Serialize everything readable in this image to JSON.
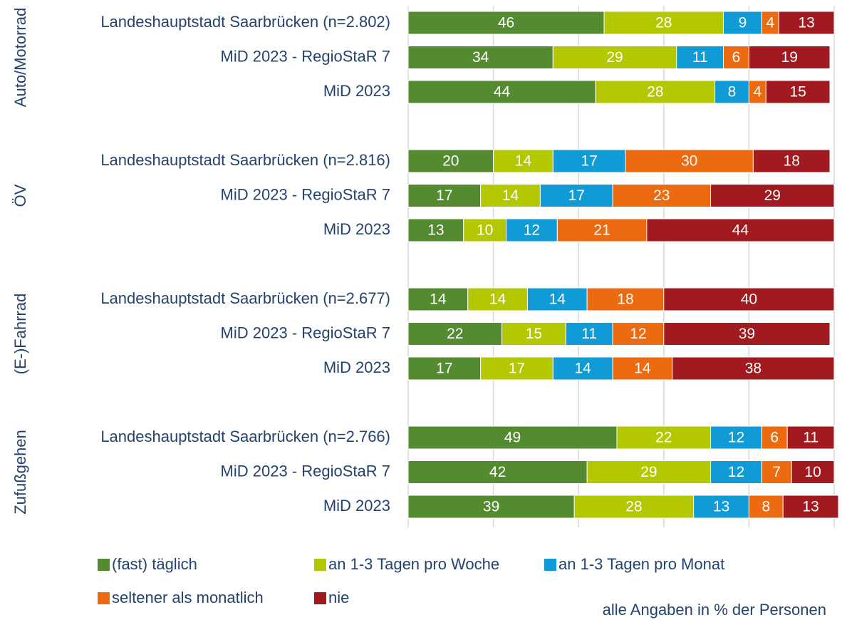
{
  "chart_data": {
    "type": "stacked_barh",
    "groups": [
      "Auto/Motorrad",
      "ÖV",
      "(E-)Fahrrad",
      "Zufußgehen"
    ],
    "categories": [
      "Landeshauptstadt Saarbrücken (n=2.802)",
      "MiD 2023 - RegioStaR 7",
      "MiD 2023",
      "Landeshauptstadt Saarbrücken (n=2.816)",
      "MiD 2023 - RegioStaR 7",
      "MiD 2023",
      "Landeshauptstadt Saarbrücken (n=2.677)",
      "MiD 2023 - RegioStaR 7",
      "MiD 2023",
      "Landeshauptstadt Saarbrücken (n=2.766)",
      "MiD 2023 - RegioStaR 7",
      "MiD 2023"
    ],
    "series": [
      {
        "name": "(fast) täglich",
        "color": "#548b30",
        "values": [
          46,
          34,
          44,
          20,
          17,
          13,
          14,
          22,
          17,
          49,
          42,
          39
        ]
      },
      {
        "name": "an 1-3 Tagen pro Woche",
        "color": "#b3c800",
        "values": [
          28,
          29,
          28,
          14,
          14,
          10,
          14,
          15,
          17,
          22,
          29,
          28
        ]
      },
      {
        "name": "an 1-3 Tagen pro Monat",
        "color": "#109ad6",
        "values": [
          9,
          11,
          8,
          17,
          17,
          12,
          14,
          11,
          14,
          12,
          12,
          13
        ]
      },
      {
        "name": "seltener als monatlich",
        "color": "#ec6b10",
        "values": [
          4,
          6,
          4,
          30,
          23,
          21,
          18,
          12,
          14,
          6,
          7,
          8
        ]
      },
      {
        "name": "nie",
        "color": "#a01a1f",
        "values": [
          13,
          19,
          15,
          18,
          29,
          44,
          40,
          39,
          38,
          11,
          10,
          13
        ]
      }
    ],
    "xlim": [
      0,
      100
    ],
    "xticks": [
      0,
      20,
      40,
      60,
      80,
      100
    ],
    "grid": true,
    "note": "alle Angaben in % der Personen"
  }
}
